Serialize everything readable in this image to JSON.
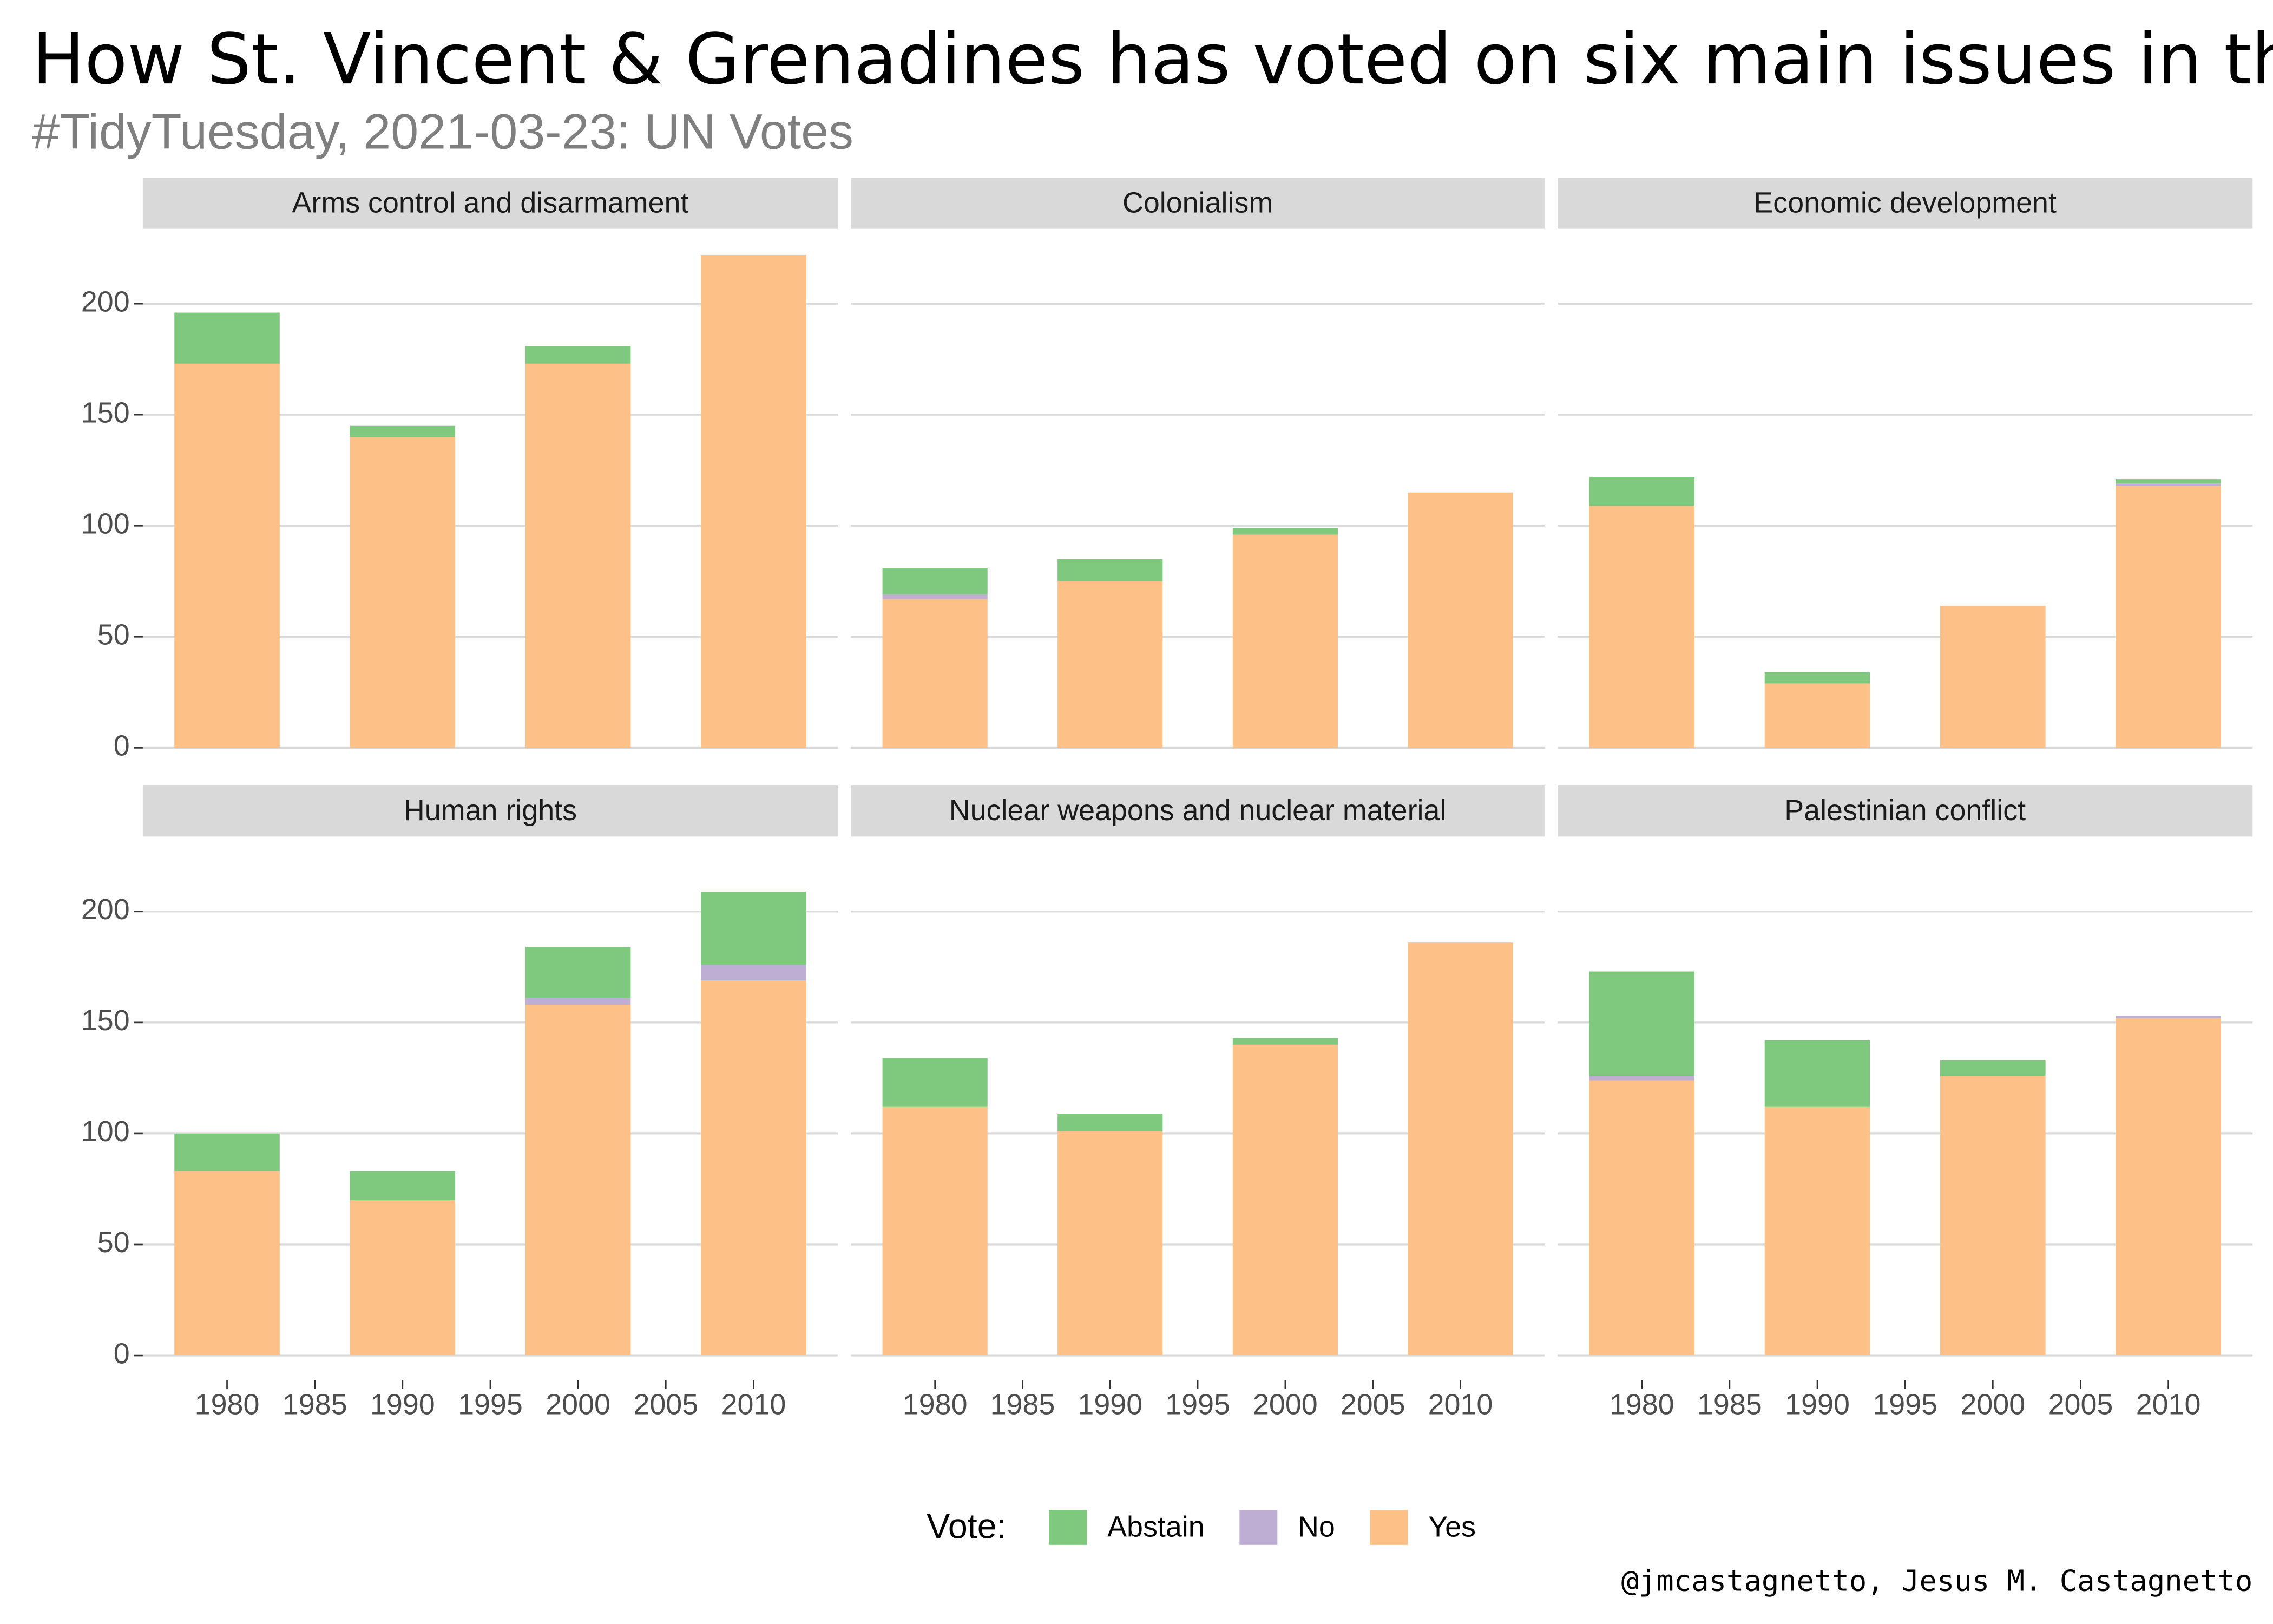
{
  "chart_data": {
    "type": "bar",
    "stacked": true,
    "title": "How St. Vincent & Grenadines has voted on six main issues in the",
    "subtitle": "#TidyTuesday, 2021-03-23: UN Votes",
    "caption": "@jmcastagnetto, Jesus M. Castagnetto",
    "x": [
      1980,
      1990,
      2000,
      2010
    ],
    "xlim": [
      1975.2,
      2014.8
    ],
    "xticks": [
      1980,
      1985,
      1990,
      1995,
      2000,
      2005,
      2010
    ],
    "ylim": [
      -11.1,
      233.1
    ],
    "yticks": [
      0,
      50,
      100,
      150,
      200
    ],
    "grid": true,
    "legend": {
      "title": "Vote:",
      "position": "bottom",
      "items": [
        {
          "name": "Abstain",
          "color": "#7fc97f"
        },
        {
          "name": "No",
          "color": "#beaed4"
        },
        {
          "name": "Yes",
          "color": "#fdc086"
        }
      ]
    },
    "facets": [
      {
        "title": "Arms control and disarmament",
        "series": [
          {
            "values": [
              23,
              5,
              8,
              0
            ]
          },
          {
            "values": [
              0,
              0,
              0,
              0
            ]
          },
          {
            "values": [
              173,
              140,
              173,
              222
            ]
          }
        ]
      },
      {
        "title": "Colonialism",
        "series": [
          {
            "values": [
              12,
              10,
              3,
              0
            ]
          },
          {
            "values": [
              2,
              0,
              0,
              0
            ]
          },
          {
            "values": [
              67,
              75,
              96,
              115
            ]
          }
        ]
      },
      {
        "title": "Economic development",
        "series": [
          {
            "values": [
              13,
              5,
              0,
              2
            ]
          },
          {
            "values": [
              0,
              0,
              0,
              1
            ]
          },
          {
            "values": [
              109,
              29,
              64,
              118
            ]
          }
        ]
      },
      {
        "title": "Human rights",
        "series": [
          {
            "values": [
              17,
              13,
              23,
              33
            ]
          },
          {
            "values": [
              0,
              0,
              3,
              7
            ]
          },
          {
            "values": [
              83,
              70,
              158,
              169
            ]
          }
        ]
      },
      {
        "title": "Nuclear weapons and nuclear material",
        "series": [
          {
            "values": [
              22,
              8,
              3,
              0
            ]
          },
          {
            "values": [
              0,
              0,
              0,
              0
            ]
          },
          {
            "values": [
              112,
              101,
              140,
              186
            ]
          }
        ]
      },
      {
        "title": "Palestinian conflict",
        "series": [
          {
            "values": [
              47,
              30,
              7,
              0
            ]
          },
          {
            "values": [
              2,
              0,
              0,
              1
            ]
          },
          {
            "values": [
              124,
              112,
              126,
              152
            ]
          }
        ]
      }
    ]
  }
}
